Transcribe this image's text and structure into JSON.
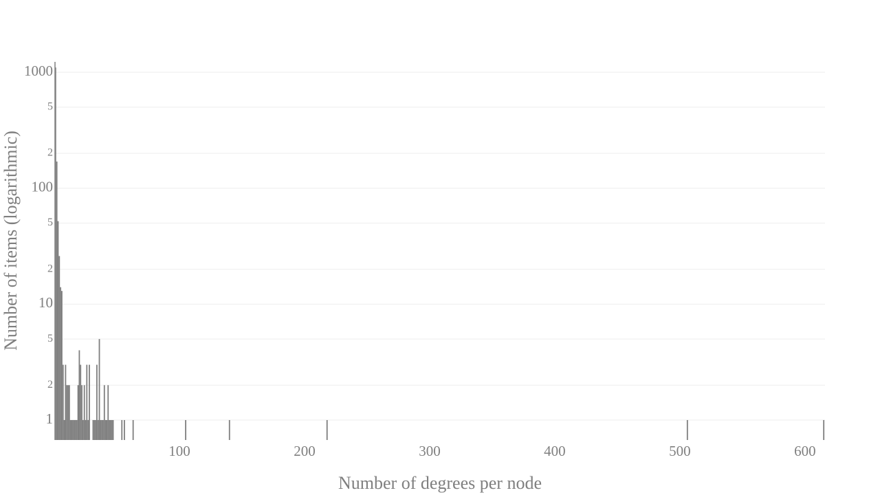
{
  "chart_data": {
    "type": "bar",
    "x_label": "Number of degrees per node",
    "y_label": "Number of items (logarithmic)",
    "yscale": "log",
    "grid": true,
    "color": "#7f7f7f",
    "x": [
      1,
      2,
      3,
      4,
      5,
      6,
      7,
      8,
      9,
      10,
      11,
      12,
      13,
      14,
      15,
      16,
      17,
      18,
      19,
      20,
      21,
      22,
      23,
      24,
      25,
      26,
      27,
      28,
      31,
      32,
      33,
      34,
      35,
      36,
      37,
      38,
      39,
      40,
      41,
      42,
      43,
      44,
      45,
      46,
      47,
      54,
      56,
      63,
      105,
      140,
      218,
      506,
      615
    ],
    "values": [
      1100,
      170,
      52,
      26,
      14,
      13,
      3,
      1,
      3,
      2,
      2,
      2,
      1,
      1,
      1,
      1,
      1,
      1,
      2,
      4,
      3,
      2,
      1,
      2,
      1,
      3,
      1,
      3,
      1,
      1,
      1,
      3,
      1,
      5,
      1,
      1,
      1,
      2,
      1,
      1,
      2,
      1,
      1,
      1,
      1,
      1,
      1,
      1,
      1,
      1,
      1,
      1,
      1
    ],
    "xlim": [
      0,
      616
    ],
    "xticks": [
      100,
      200,
      300,
      400,
      500,
      600
    ],
    "ylim": [
      0.673,
      1230
    ],
    "yticks": [
      1,
      2,
      5,
      10,
      {
        "value": 20,
        "label": "2"
      },
      {
        "value": 50,
        "label": "5"
      },
      100,
      {
        "value": 200,
        "label": "2"
      },
      {
        "value": 500,
        "label": "5"
      },
      1000
    ]
  }
}
